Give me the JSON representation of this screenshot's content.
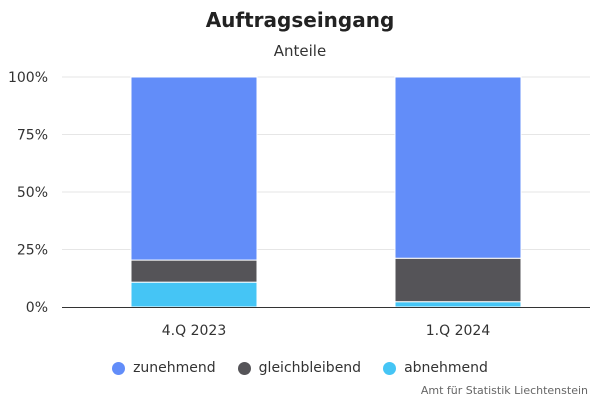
{
  "chart_data": {
    "type": "bar",
    "stacked": true,
    "percent": true,
    "title": "Auftragseingang",
    "subtitle": "Anteile",
    "categories": [
      "4.Q 2023",
      "1.Q 2024"
    ],
    "series": [
      {
        "name": "abnehmend",
        "values": [
          10.8,
          2.3
        ],
        "color": "#45c5f5"
      },
      {
        "name": "gleichbleibend",
        "values": [
          9.6,
          18.9
        ],
        "color": "#555458"
      },
      {
        "name": "zunehmend",
        "values": [
          79.6,
          78.8
        ],
        "color": "#628df9"
      }
    ],
    "legend_order": [
      "zunehmend",
      "gleichbleibend",
      "abnehmend"
    ],
    "ylim": [
      0,
      100
    ],
    "yticks": [
      "0%",
      "25%",
      "50%",
      "75%",
      "100%"
    ],
    "grid": true,
    "legend_position": "bottom"
  },
  "credits": "Amt für Statistik Liechtenstein"
}
